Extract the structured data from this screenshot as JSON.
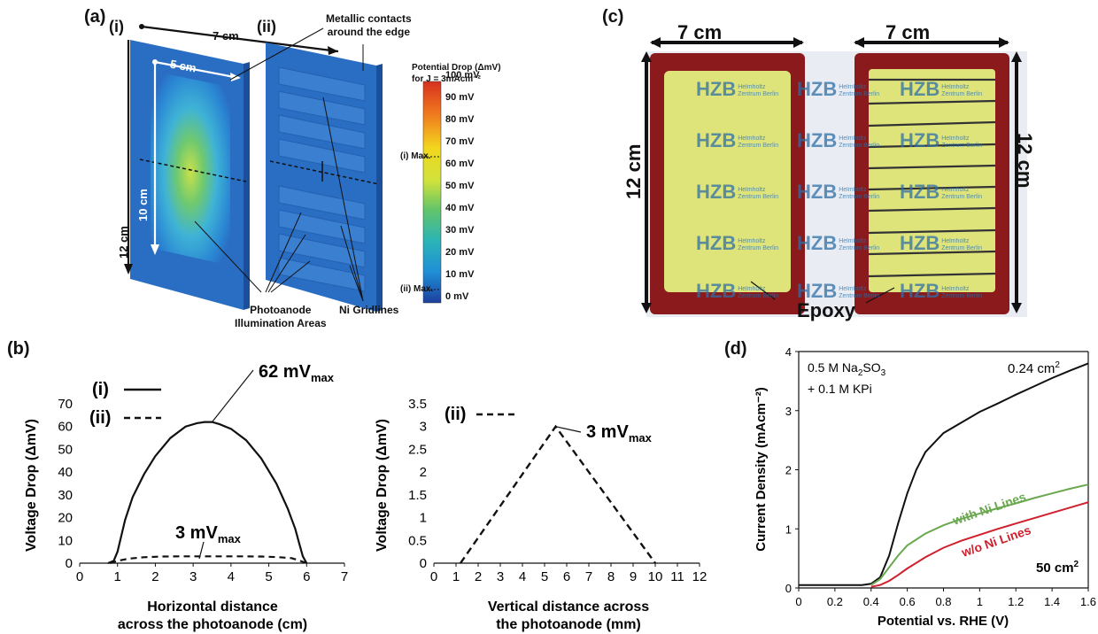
{
  "panels": {
    "a": {
      "label": "(a)",
      "sub_i": "(i)",
      "sub_ii": "(ii)",
      "dim_7cm": "7 cm",
      "dim_5cm": "5 cm",
      "dim_10cm": "10 cm",
      "dim_12cm": "12 cm",
      "metallic_line1": "Metallic contacts",
      "metallic_line2": "around the edge",
      "photoanode_line1": "Photoanode",
      "photoanode_line2": "Illumination Areas",
      "ni_gridlines": "Ni Gridlines",
      "colorbar_title1": "Potential Drop (ΔmV)",
      "colorbar_title2": "for J = 3mAcm⁻²",
      "colorbar_ticks": [
        "100 mV",
        "90 mV",
        "80 mV",
        "70 mV",
        "60 mV",
        "50 mV",
        "40 mV",
        "30 mV",
        "20 mV",
        "10 mV",
        "0 mV"
      ],
      "marker_i": "(i) Max.",
      "marker_ii": "(ii) Max."
    },
    "c": {
      "label": "(c)",
      "dim_left_7": "7 cm",
      "dim_right_7": "7 cm",
      "dim_left_12": "12 cm",
      "dim_right_12": "12 cm",
      "epoxy": "Epoxy",
      "logo_text": "HZB",
      "logo_sub1": "Helmholtz",
      "logo_sub2": "Zentrum Berlin"
    },
    "b": {
      "label": "(b)"
    },
    "d": {
      "label": "(d)"
    }
  },
  "colors": {
    "device_blue": "#2a6ec4",
    "epoxy_red": "#8a1a1c",
    "yellow_film": "#dfe47a",
    "green_line": "#6aa84f",
    "red_line": "#d0202e",
    "black_line": "#111111"
  },
  "chart_data": [
    {
      "type": "line",
      "id": "b-left",
      "xlabel_line1": "Horizontal distance",
      "xlabel_line2": "across the photoanode (cm)",
      "ylabel": "Voltage Drop (ΔmV)",
      "xlim": [
        0,
        7
      ],
      "ylim": [
        0,
        70
      ],
      "xticks": [
        "0",
        "1",
        "2",
        "3",
        "4",
        "5",
        "6",
        "7"
      ],
      "yticks": [
        "0",
        "10",
        "20",
        "30",
        "40",
        "50",
        "60",
        "70"
      ],
      "legend": [
        {
          "label": "(i)",
          "style": "solid"
        },
        {
          "label": "(ii)",
          "style": "dashed"
        }
      ],
      "annotation_main_value": "62 mV",
      "annotation_main_sub": "max",
      "annotation_small_value": "3 mV",
      "annotation_small_sub": "max",
      "series": [
        {
          "name": "(i)",
          "style": "solid",
          "x": [
            0.75,
            0.9,
            1.0,
            1.1,
            1.2,
            1.4,
            1.7,
            2.0,
            2.4,
            2.8,
            3.1,
            3.3,
            3.5,
            3.7,
            4.0,
            4.4,
            4.8,
            5.2,
            5.5,
            5.7,
            5.8,
            5.9,
            6.0
          ],
          "y": [
            0,
            1,
            5,
            12,
            19,
            29,
            39,
            47,
            55,
            60,
            61.5,
            62,
            62,
            61,
            59,
            54,
            46,
            35,
            24,
            15,
            9,
            3,
            0
          ]
        },
        {
          "name": "(ii)",
          "style": "dashed",
          "x": [
            0.8,
            1.0,
            1.3,
            1.7,
            2.2,
            2.7,
            3.2,
            3.5,
            3.8,
            4.3,
            4.8,
            5.2,
            5.6,
            5.8,
            6.0
          ],
          "y": [
            0,
            1.0,
            2.0,
            2.6,
            2.9,
            3.0,
            3.0,
            3.0,
            3.0,
            3.0,
            2.9,
            2.7,
            2.2,
            1.2,
            0
          ]
        }
      ]
    },
    {
      "type": "line",
      "id": "b-right",
      "xlabel_line1": "Vertical distance across",
      "xlabel_line2": "the photoanode (mm)",
      "ylabel": "Voltage Drop (ΔmV)",
      "xlim": [
        0,
        12
      ],
      "ylim": [
        0,
        3.5
      ],
      "xticks": [
        "0",
        "1",
        "2",
        "3",
        "4",
        "5",
        "6",
        "7",
        "8",
        "9",
        "10",
        "11",
        "12"
      ],
      "yticks": [
        "0",
        "0.5",
        "1",
        "1.5",
        "2",
        "2.5",
        "3",
        "3.5"
      ],
      "legend": [
        {
          "label": "(ii)",
          "style": "dashed"
        }
      ],
      "annotation_value": "3 mV",
      "annotation_sub": "max",
      "series": [
        {
          "name": "(ii)",
          "style": "dashed",
          "x": [
            1.2,
            5.5,
            10.0
          ],
          "y": [
            0,
            3.0,
            0
          ]
        }
      ]
    },
    {
      "type": "line",
      "id": "d",
      "xlabel": "Potential vs. RHE (V)",
      "ylabel": "Current Density (mAcm⁻²)",
      "xlim": [
        0,
        1.6
      ],
      "ylim": [
        0,
        4
      ],
      "xticks": [
        "0",
        "0.2",
        "0.4",
        "0.6",
        "0.8",
        "1",
        "1.2",
        "1.4",
        "1.6"
      ],
      "yticks": [
        "0",
        "1",
        "2",
        "3",
        "4"
      ],
      "electrolyte_line1": "0.5 M Na",
      "electrolyte_sub": "2",
      "electrolyte_line1b": "SO",
      "electrolyte_sub2": "3",
      "electrolyte_line2": "+ 0.1 M KPi",
      "label_small_area": "0.24 cm",
      "label_small_area_sup": "2",
      "label_large_area": "50 cm",
      "label_large_area_sup": "2",
      "label_with": "with Ni Lines",
      "label_without": "w/o Ni Lines",
      "series": [
        {
          "name": "0.24 cm²",
          "color": "#111111",
          "x": [
            0,
            0.2,
            0.35,
            0.4,
            0.45,
            0.5,
            0.55,
            0.6,
            0.65,
            0.7,
            0.8,
            0.9,
            1.0,
            1.1,
            1.2,
            1.3,
            1.4,
            1.5,
            1.6
          ],
          "y": [
            0.05,
            0.05,
            0.05,
            0.07,
            0.18,
            0.55,
            1.1,
            1.6,
            2.0,
            2.3,
            2.62,
            2.8,
            2.98,
            3.12,
            3.27,
            3.41,
            3.55,
            3.68,
            3.8
          ]
        },
        {
          "name": "with Ni Lines",
          "color": "#6aa84f",
          "x": [
            0.4,
            0.45,
            0.5,
            0.55,
            0.6,
            0.7,
            0.8,
            0.9,
            1.0,
            1.1,
            1.2,
            1.3,
            1.4,
            1.5,
            1.6
          ],
          "y": [
            0.05,
            0.15,
            0.35,
            0.55,
            0.72,
            0.92,
            1.06,
            1.17,
            1.26,
            1.35,
            1.43,
            1.52,
            1.6,
            1.68,
            1.75
          ]
        },
        {
          "name": "w/o Ni Lines",
          "color": "#d0202e",
          "x": [
            0.4,
            0.45,
            0.5,
            0.55,
            0.6,
            0.7,
            0.8,
            0.9,
            1.0,
            1.1,
            1.2,
            1.3,
            1.4,
            1.5,
            1.6
          ],
          "y": [
            0.02,
            0.05,
            0.12,
            0.22,
            0.33,
            0.52,
            0.68,
            0.8,
            0.9,
            1.0,
            1.09,
            1.18,
            1.27,
            1.36,
            1.45
          ]
        }
      ]
    }
  ]
}
